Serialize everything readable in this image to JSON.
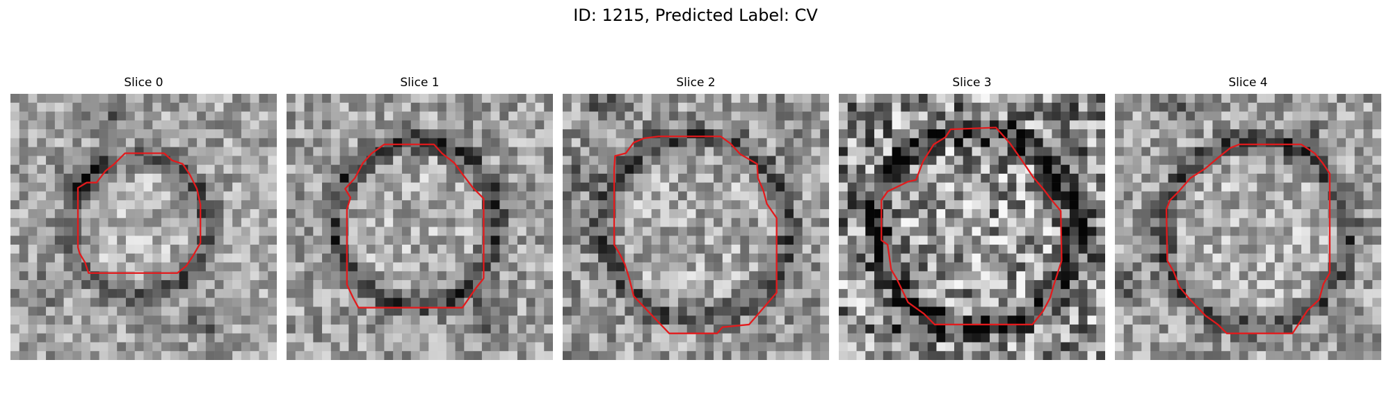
{
  "figure": {
    "title": "ID: 1215, Predicted Label: CV"
  },
  "slices": [
    {
      "label": "Slice 0",
      "contour_color": "#e31a1c"
    },
    {
      "label": "Slice 1",
      "contour_color": "#e31a1c"
    },
    {
      "label": "Slice 2",
      "contour_color": "#e31a1c"
    },
    {
      "label": "Slice 3",
      "contour_color": "#e31a1c"
    },
    {
      "label": "Slice 4",
      "contour_color": "#e31a1c"
    }
  ]
}
